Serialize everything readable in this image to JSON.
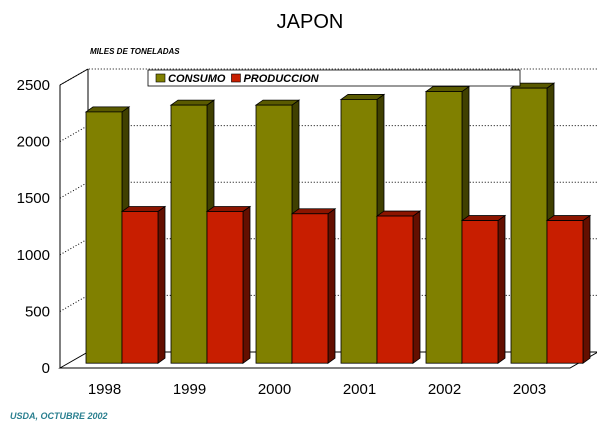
{
  "chart_data": {
    "type": "bar",
    "title": "JAPON",
    "unit_label": "MILES DE TONELADAS",
    "source": "USDA, OCTUBRE 2002",
    "categories": [
      "1998",
      "1999",
      "2000",
      "2001",
      "2002",
      "2003"
    ],
    "series": [
      {
        "name": "CONSUMO",
        "values": [
          2220,
          2280,
          2280,
          2330,
          2400,
          2430
        ],
        "color": "#808000"
      },
      {
        "name": "PRODUCCION",
        "values": [
          1340,
          1340,
          1320,
          1300,
          1260,
          1260
        ],
        "color": "#c81e00"
      }
    ],
    "ylim": [
      0,
      2500
    ],
    "yticks": [
      0,
      500,
      1000,
      1500,
      2000,
      2500
    ],
    "grid": true,
    "legend_position": "top"
  }
}
